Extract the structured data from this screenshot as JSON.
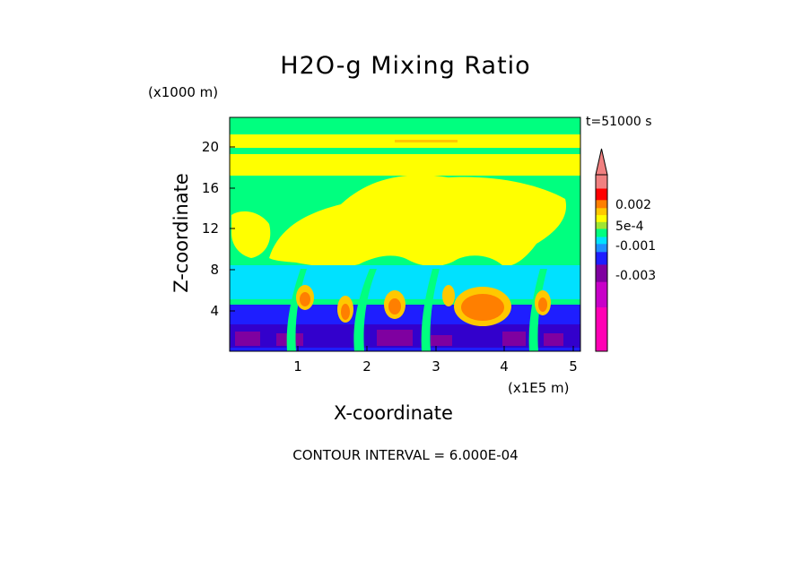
{
  "chart_data": {
    "type": "heatmap",
    "title": "H2O-g Mixing Ratio",
    "xlabel": "X-coordinate",
    "ylabel": "Z-coordinate",
    "x_unit": "(x1E5 m)",
    "y_unit": "(x1000 m)",
    "time_label": "t=51000 s",
    "footer": "CONTOUR INTERVAL = 6.000E-04",
    "xlim": [
      0,
      5.1
    ],
    "ylim": [
      0,
      22.5
    ],
    "x_ticks": [
      "1",
      "2",
      "3",
      "4",
      "5"
    ],
    "y_ticks": [
      "4",
      "8",
      "12",
      "16",
      "20"
    ],
    "colorbar": {
      "levels_low_to_high": [
        "#ff00b4",
        "#c800c8",
        "#7f00a0",
        "#1e1eff",
        "#1e90ff",
        "#00e1ff",
        "#00ff7f",
        "#a0e632",
        "#ffff00",
        "#ffc800",
        "#ff7f00",
        "#ff0000",
        "#f08080"
      ],
      "labels": [
        "0.002",
        "5e-4",
        "-0.001",
        "-0.003"
      ],
      "extends_max": true
    },
    "regions_description": "Field dominated by green (near 0); yellow band/plume (~5e-4 to 0.001) aloft 8-20 km; cyan layer ~6-8 km; orange positive cells 2-6 km; blue/purple negative values below 4 km."
  }
}
